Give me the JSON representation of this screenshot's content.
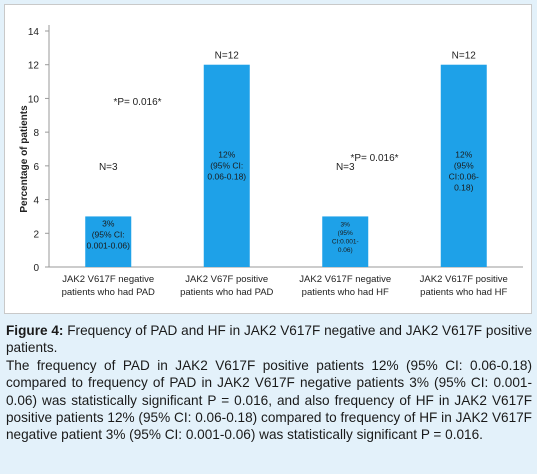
{
  "chart_data": {
    "type": "bar",
    "ylabel": "Percentage of patients",
    "ylim": [
      0,
      14
    ],
    "yticks": [
      0,
      2,
      4,
      6,
      8,
      10,
      12,
      14
    ],
    "categories": [
      [
        "JAK2 V617F negative",
        "patients who had  PAD"
      ],
      [
        "JAK2 V67F positive",
        "patients who had PAD"
      ],
      [
        "JAK2 V617F negative",
        "patients who had HF"
      ],
      [
        "JAK2 V617F positive",
        "patients who had HF"
      ]
    ],
    "values": [
      3,
      12,
      3,
      12
    ],
    "bar_color": "#1ea1e8",
    "n_labels": [
      "N=3",
      "N=12",
      "N=3",
      "N=12"
    ],
    "bar_labels": [
      [
        "3%",
        "(95% CI:",
        "0.001-0.06)"
      ],
      [
        "12%",
        "(95% CI:",
        "0.06-0.18)"
      ],
      [
        "3%",
        "(95%",
        "CI:0.001-",
        "0.06)"
      ],
      [
        "12%",
        "(95%",
        "CI:0.06-",
        "0.18)"
      ]
    ],
    "annotations": [
      "*P= 0.016*",
      "*P= 0.016*"
    ]
  },
  "caption": {
    "label": "Figure 4:",
    "title": " Frequency of PAD and HF in JAK2 V617F negative and JAK2 V617F positive patients.",
    "body": "The frequency of PAD in JAK2 V617F positive patients 12% (95% CI: 0.06-0.18) compared to frequency of PAD in JAK2 V617F negative patients 3% (95% CI: 0.001-0.06) was statistically significant P = 0.016, and also frequency of HF in JAK2 V617F positive patients 12% (95% CI: 0.06-0.18) compared to frequency of HF in JAK2 V617F negative patient 3% (95% CI: 0.001-0.06) was statistically significant P = 0.016."
  }
}
